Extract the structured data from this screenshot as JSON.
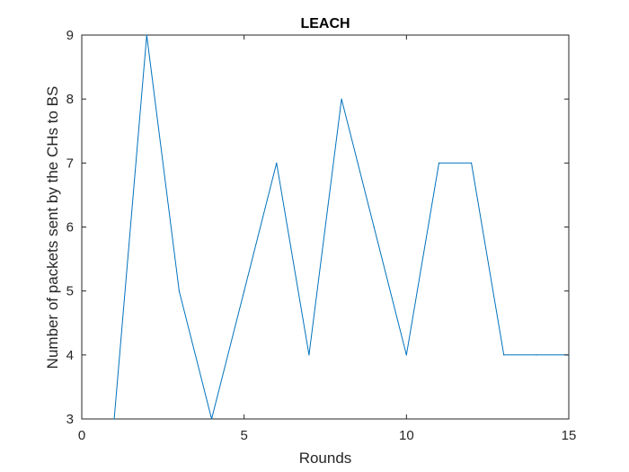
{
  "chart_data": {
    "type": "line",
    "title": "LEACH",
    "xlabel": "Rounds",
    "ylabel": "Number of packets sent by the CHs to BS",
    "xlim": [
      0,
      15
    ],
    "ylim": [
      3,
      9
    ],
    "xticks": [
      0,
      5,
      10,
      15
    ],
    "yticks": [
      3,
      4,
      5,
      6,
      7,
      8,
      9
    ],
    "grid": false,
    "series": [
      {
        "color": "#0072BD",
        "x": [
          1,
          2,
          3,
          4,
          5,
          6,
          7,
          8,
          9,
          10,
          11,
          12,
          13,
          14,
          15
        ],
        "y": [
          3,
          9,
          5,
          3,
          5,
          7,
          4,
          8,
          6,
          4,
          7,
          7,
          4,
          4,
          4
        ]
      }
    ]
  }
}
